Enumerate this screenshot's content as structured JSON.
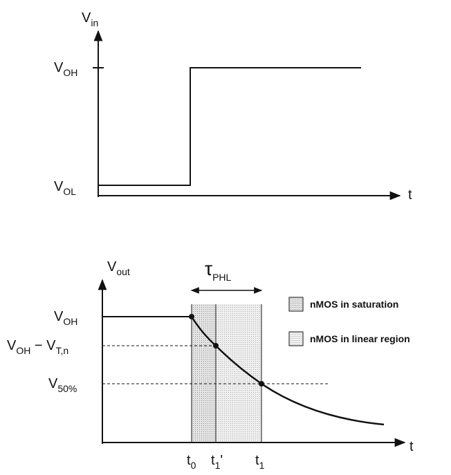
{
  "input_plot": {
    "y_label": {
      "text": "V",
      "sub": "in"
    },
    "x_label": "t",
    "levels": [
      {
        "text": "V",
        "sub": "OH"
      },
      {
        "text": "V",
        "sub": "OL"
      }
    ]
  },
  "output_plot": {
    "y_label": {
      "text": "V",
      "sub": "out"
    },
    "x_label": "t",
    "delay": {
      "text": "τ",
      "sub": "PHL"
    },
    "levels": [
      {
        "text": "V",
        "sub": "OH"
      },
      {
        "text": "V",
        "sub": "OH",
        "suffix": " − V",
        "suffix_sub": "T,n"
      },
      {
        "text": "V",
        "sub": "50%"
      }
    ],
    "times": [
      {
        "text": "t",
        "sub": "0"
      },
      {
        "text": "t",
        "sub": "1",
        "suffix": "'"
      },
      {
        "text": "t",
        "sub": "1"
      }
    ]
  },
  "legend": [
    "nMOS in saturation",
    "nMOS in linear region"
  ]
}
